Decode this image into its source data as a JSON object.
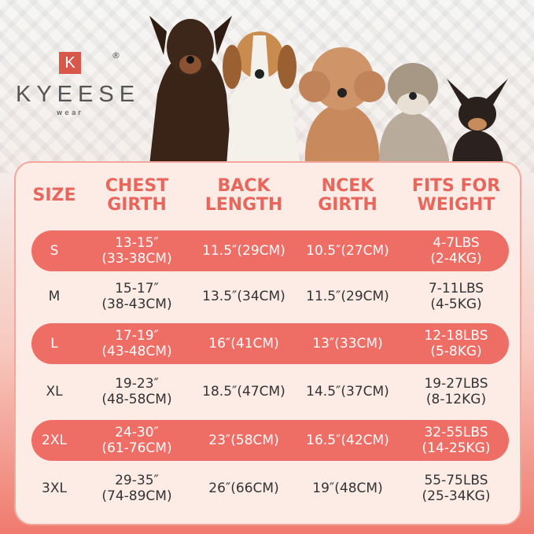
{
  "brand": {
    "logo_letter": "K",
    "name": "KYEESE",
    "sub": "wear",
    "registered": "®"
  },
  "colors": {
    "accent": "#ee6e66",
    "header_text": "#e8665c",
    "card": "#fdebe5"
  },
  "table": {
    "headers": [
      [
        "SIZE",
        ""
      ],
      [
        "CHEST",
        "GIRTH"
      ],
      [
        "BACK",
        "LENGTH"
      ],
      [
        "NCEK",
        "GIRTH"
      ],
      [
        "FITS FOR",
        "WEIGHT"
      ]
    ],
    "rows": [
      {
        "size": "S",
        "chest": [
          "13-15″",
          "(33-38CM)"
        ],
        "back": "11.5″(29CM)",
        "neck": "10.5″(27CM)",
        "weight": [
          "4-7LBS",
          "(2-4KG)"
        ],
        "highlight": true
      },
      {
        "size": "M",
        "chest": [
          "15-17″",
          "(38-43CM)"
        ],
        "back": "13.5″(34CM)",
        "neck": "11.5″(29CM)",
        "weight": [
          "7-11LBS",
          "(4-5KG)"
        ],
        "highlight": false
      },
      {
        "size": "L",
        "chest": [
          "17-19″",
          "(43-48CM)"
        ],
        "back": "16″(41CM)",
        "neck": "13″(33CM)",
        "weight": [
          "12-18LBS",
          "(5-8KG)"
        ],
        "highlight": true
      },
      {
        "size": "XL",
        "chest": [
          "19-23″",
          "(48-58CM)"
        ],
        "back": "18.5″(47CM)",
        "neck": "14.5″(37CM)",
        "weight": [
          "19-27LBS",
          "(8-12KG)"
        ],
        "highlight": false
      },
      {
        "size": "2XL",
        "chest": [
          "24-30″",
          "(61-76CM)"
        ],
        "back": "23″(58CM)",
        "neck": "16.5″(42CM)",
        "weight": [
          "32-55LBS",
          "(14-25KG)"
        ],
        "highlight": true
      },
      {
        "size": "3XL",
        "chest": [
          "29-35″",
          "(74-89CM)"
        ],
        "back": "26″(66CM)",
        "neck": "19″(48CM)",
        "weight": [
          "55-75LBS",
          "(25-34KG)"
        ],
        "highlight": false
      }
    ]
  }
}
